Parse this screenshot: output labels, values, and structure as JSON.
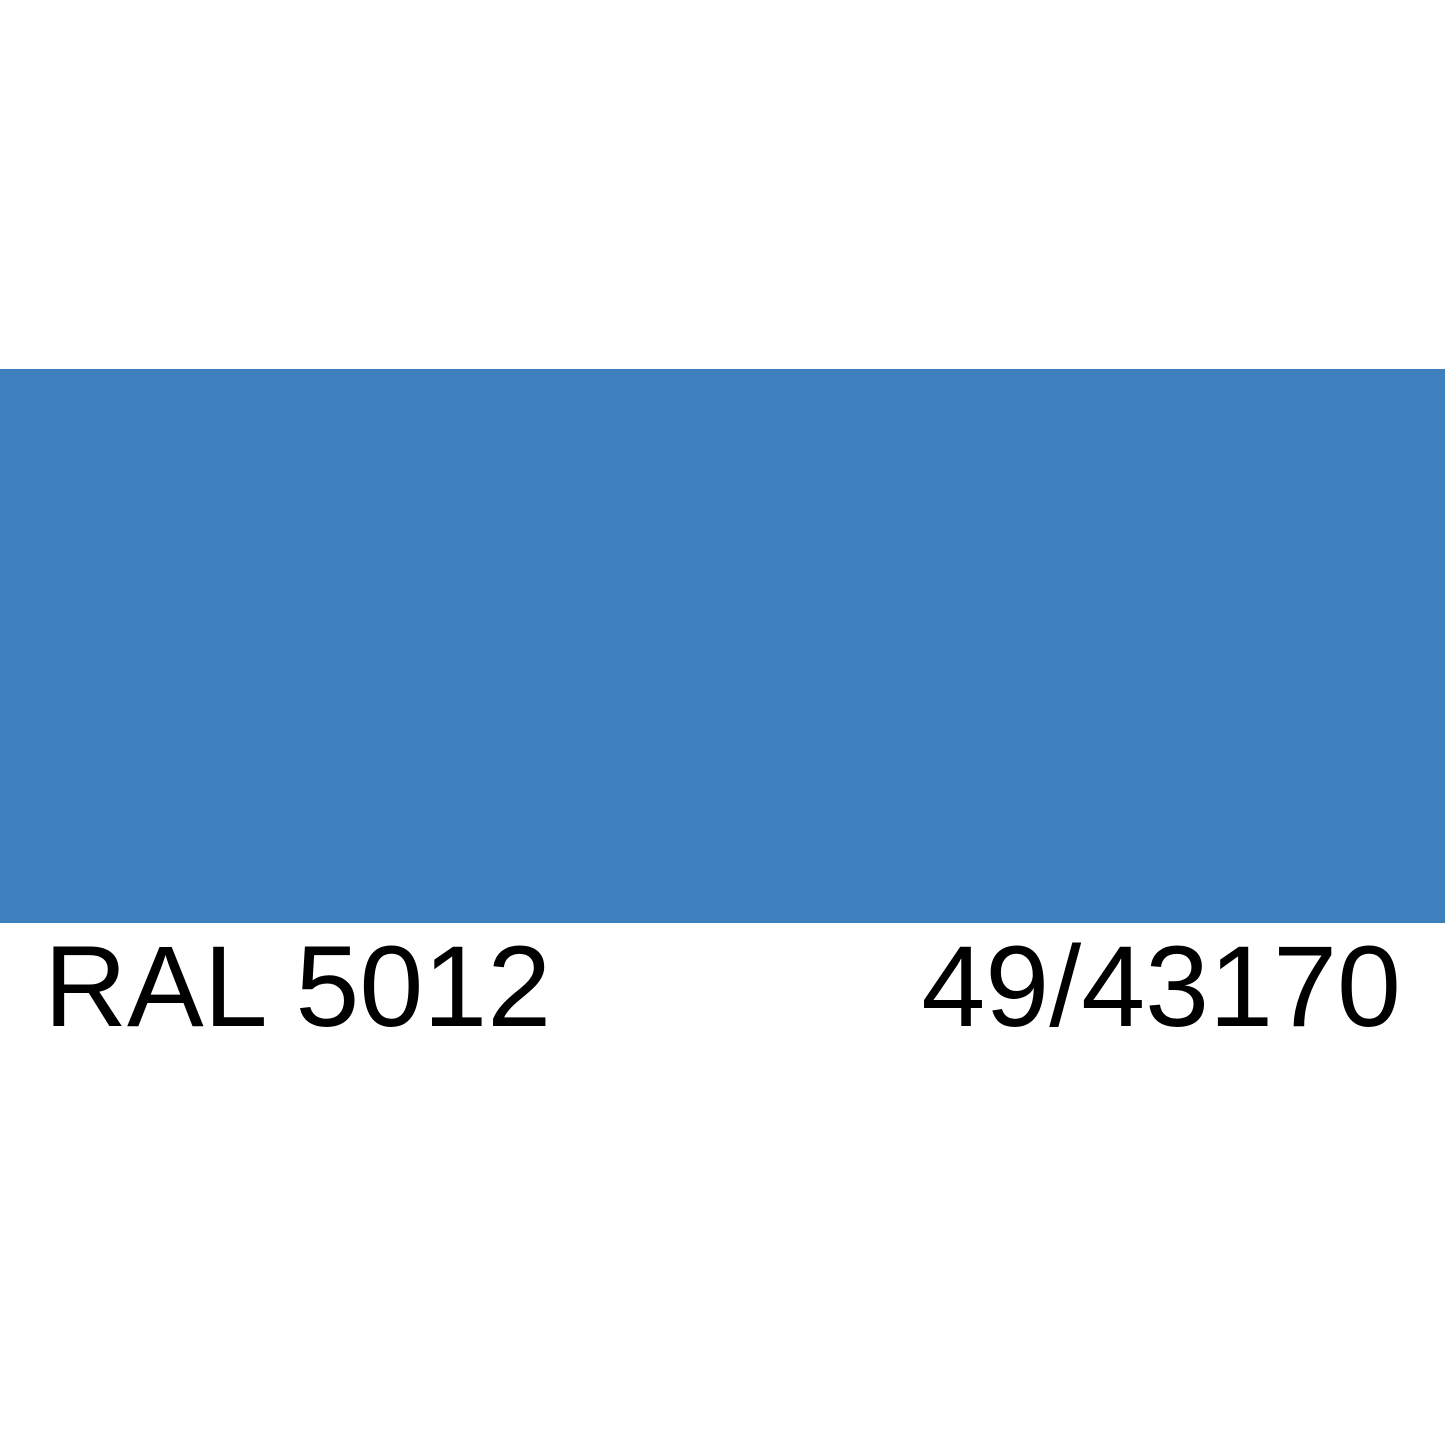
{
  "card": {
    "ral_code": "RAL 5012",
    "secondary_code": "49/43170",
    "swatch_color": "#3E80BD",
    "background_color": "#FFFFFF",
    "text_color": "#000000"
  }
}
